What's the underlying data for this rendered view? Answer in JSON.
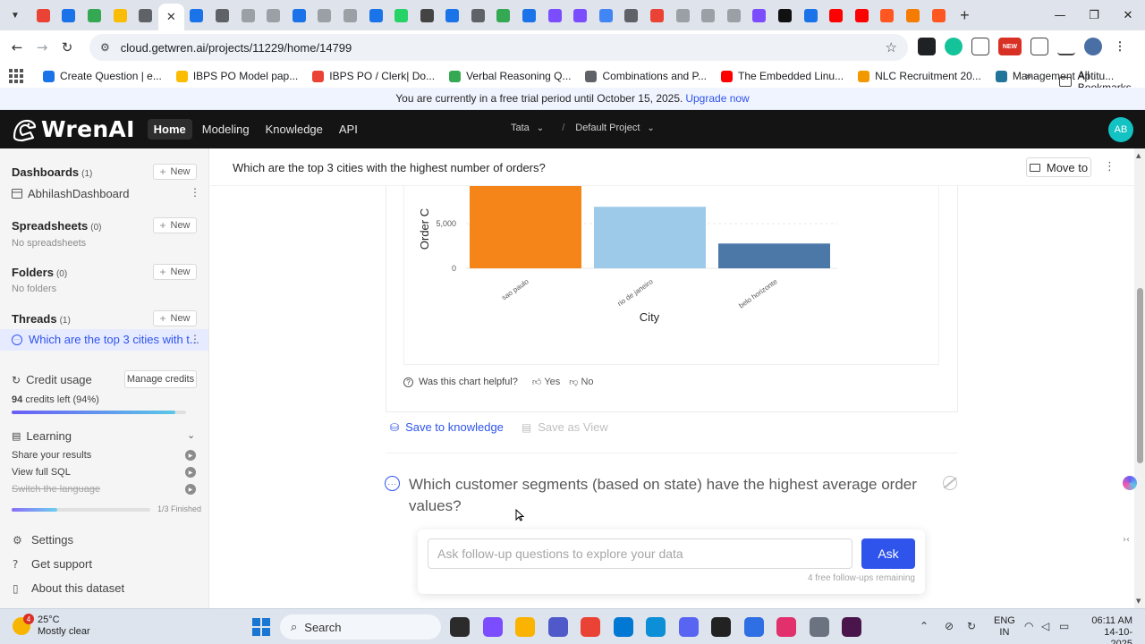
{
  "browser": {
    "url": "cloud.getwren.ai/projects/11229/home/14799",
    "tab_favicon_colors": [
      "#ea4335",
      "#1a73e8",
      "#34a853",
      "#fbbc04",
      "#5f6368",
      "#ffffff",
      "#1a73e8",
      "#5f6368",
      "#9aa0a6",
      "#9aa0a6",
      "#1a73e8",
      "#9aa0a6",
      "#9aa0a6",
      "#1a73e8",
      "#25d366",
      "#444444",
      "#1a73e8",
      "#5f6368",
      "#34a853",
      "#1a73e8",
      "#7c4dff",
      "#7c4dff",
      "#4285f4",
      "#5f6368",
      "#ea4335",
      "#9aa0a6",
      "#9aa0a6",
      "#9aa0a6",
      "#7c4dff",
      "#111111",
      "#1a73e8",
      "#ff0000",
      "#ff0000",
      "#ff5722",
      "#f57c00",
      "#ff5722"
    ],
    "bookmarks": [
      {
        "label": "Create Question | e...",
        "color": "#1a73e8"
      },
      {
        "label": "IBPS PO Model pap...",
        "color": "#fbbc04"
      },
      {
        "label": "IBPS PO / Clerk| Do...",
        "color": "#ea4335"
      },
      {
        "label": "Verbal Reasoning Q...",
        "color": "#34a853"
      },
      {
        "label": "Combinations and P...",
        "color": "#5f6368"
      },
      {
        "label": "The Embedded Linu...",
        "color": "#ff0000"
      },
      {
        "label": "NLC Recruitment 20...",
        "color": "#f29900"
      },
      {
        "label": "Management Aptitu...",
        "color": "#21759b"
      }
    ],
    "more_bookmarks": "»",
    "all_bookmarks": "All Bookmarks",
    "new_badge": "NEW"
  },
  "trial": {
    "text": "You are currently in a free trial period until October 15, 2025.",
    "link": "Upgrade now"
  },
  "header": {
    "logo": "WrenAI",
    "nav": [
      "Home",
      "Modeling",
      "Knowledge",
      "API"
    ],
    "org": "Tata",
    "project": "Default Project",
    "avatar": "AB"
  },
  "sidebar": {
    "dashboards": {
      "title": "Dashboards",
      "count": "(1)",
      "new": "New",
      "items": [
        "AbhilashDashboard"
      ]
    },
    "spreadsheets": {
      "title": "Spreadsheets",
      "count": "(0)",
      "new": "New",
      "empty": "No spreadsheets"
    },
    "folders": {
      "title": "Folders",
      "count": "(0)",
      "new": "New",
      "empty": "No folders"
    },
    "threads": {
      "title": "Threads",
      "count": "(1)",
      "new": "New",
      "items": [
        "Which are the top 3 cities with t..."
      ]
    },
    "credits": {
      "title": "Credit usage",
      "manage": "Manage credits",
      "left_number": "94",
      "left_text": "credits left (94%)",
      "percent": 94
    },
    "learning": {
      "title": "Learning",
      "items": [
        "Share your results",
        "View full SQL",
        "Switch the language"
      ],
      "progress_text": "1/3 Finished",
      "progress": 0.33
    },
    "footer": [
      "Settings",
      "Get support",
      "About this dataset"
    ]
  },
  "thread": {
    "title": "Which are the top 3 cities with the highest number of orders?",
    "move_to": "Move to",
    "helpful": "Was this chart helpful?",
    "yes": "Yes",
    "no": "No",
    "save_knowledge": "Save to knowledge",
    "save_view": "Save as View",
    "next_question": "Which customer segments (based on state) have the highest average order values?",
    "ask_placeholder": "Ask follow-up questions to explore your data",
    "ask_button": "Ask",
    "remaining": "4 free follow-ups remaining"
  },
  "chart_data": {
    "type": "bar",
    "categories": [
      "sao paulo",
      "rio de janeiro",
      "belo horizonte"
    ],
    "values": [
      15540,
      6882,
      2773
    ],
    "colors": [
      "#f58518",
      "#9ecae9",
      "#4c78a8"
    ],
    "xlabel": "City",
    "ylabel": "Order C",
    "yticks": [
      0,
      5000
    ],
    "ytick_labels": [
      "0",
      "5,000"
    ],
    "grid": true
  },
  "taskbar": {
    "temp": "25°C",
    "weather": "Mostly clear",
    "weather_badge": "4",
    "search": "Search",
    "lang_1": "ENG",
    "lang_2": "IN",
    "time": "06:11 AM",
    "date": "14-10-2025",
    "apps": [
      {
        "name": "task-view",
        "color": "#2b2b2b"
      },
      {
        "name": "copilot",
        "color": "#7c4dff"
      },
      {
        "name": "file-explorer",
        "color": "#f9b300"
      },
      {
        "name": "teams",
        "color": "#5059c9"
      },
      {
        "name": "chrome",
        "color": "#ea4335"
      },
      {
        "name": "store",
        "color": "#0078d4"
      },
      {
        "name": "edge",
        "color": "#0c8fd6"
      },
      {
        "name": "discord",
        "color": "#5865f2"
      },
      {
        "name": "app-chat",
        "color": "#222222"
      },
      {
        "name": "app-arc",
        "color": "#2f6fe4"
      },
      {
        "name": "instagram",
        "color": "#e1306c"
      },
      {
        "name": "settings",
        "color": "#6b7280"
      },
      {
        "name": "slack",
        "color": "#4a154b"
      }
    ]
  }
}
